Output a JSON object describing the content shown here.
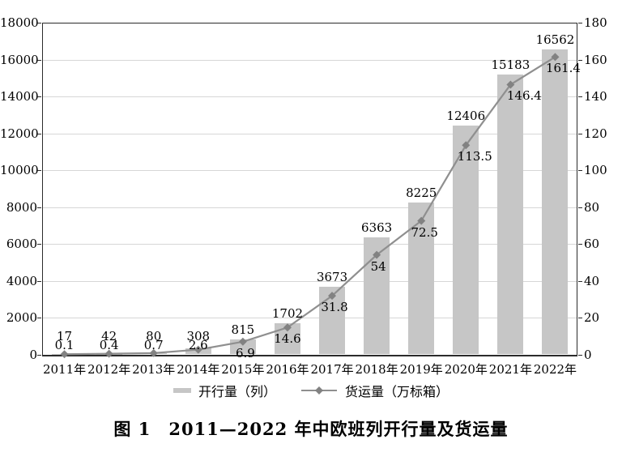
{
  "figure": {
    "caption": "图 1　2011—2022 年中欧班列开行量及货运量"
  },
  "legend": {
    "bar_label": "开行量（列）",
    "line_label": "货运量（万标箱）"
  },
  "chart_data": {
    "type": "combo",
    "title": "图 1　2011—2022 年中欧班列开行量及货运量",
    "categories": [
      "2011年",
      "2012年",
      "2013年",
      "2014年",
      "2015年",
      "2016年",
      "2017年",
      "2018年",
      "2019年",
      "2020年",
      "2021年",
      "2022年"
    ],
    "series": [
      {
        "name": "开行量（列）",
        "type": "bar",
        "axis": "left",
        "color": "#c6c6c6",
        "values": [
          17,
          42,
          80,
          308,
          815,
          1702,
          3673,
          6363,
          8225,
          12406,
          15183,
          16562
        ]
      },
      {
        "name": "货运量（万标箱）",
        "type": "line",
        "axis": "right",
        "color": "#8f8f8f",
        "marker": "diamond",
        "marker_color": "#828282",
        "values": [
          0.1,
          0.4,
          0.7,
          2.6,
          6.9,
          14.6,
          31.8,
          54,
          72.5,
          113.5,
          146.4,
          161.4
        ]
      }
    ],
    "left_axis": {
      "min": 0,
      "max": 18000,
      "step": 2000,
      "ticks": [
        "18000",
        "16000",
        "14000",
        "12000",
        "10000",
        "8000",
        "6000",
        "4000",
        "2000",
        "0"
      ]
    },
    "right_axis": {
      "min": 0,
      "max": 180,
      "step": 20,
      "ticks": [
        "180",
        "160",
        "140",
        "120",
        "100",
        "80",
        "60",
        "40",
        "20",
        "0"
      ]
    },
    "grid": true,
    "data_labels": true,
    "legend_position": "bottom",
    "colors": {
      "frame": "#2b2b2b",
      "grid": "#d7d7d7",
      "text": "#000000"
    }
  }
}
